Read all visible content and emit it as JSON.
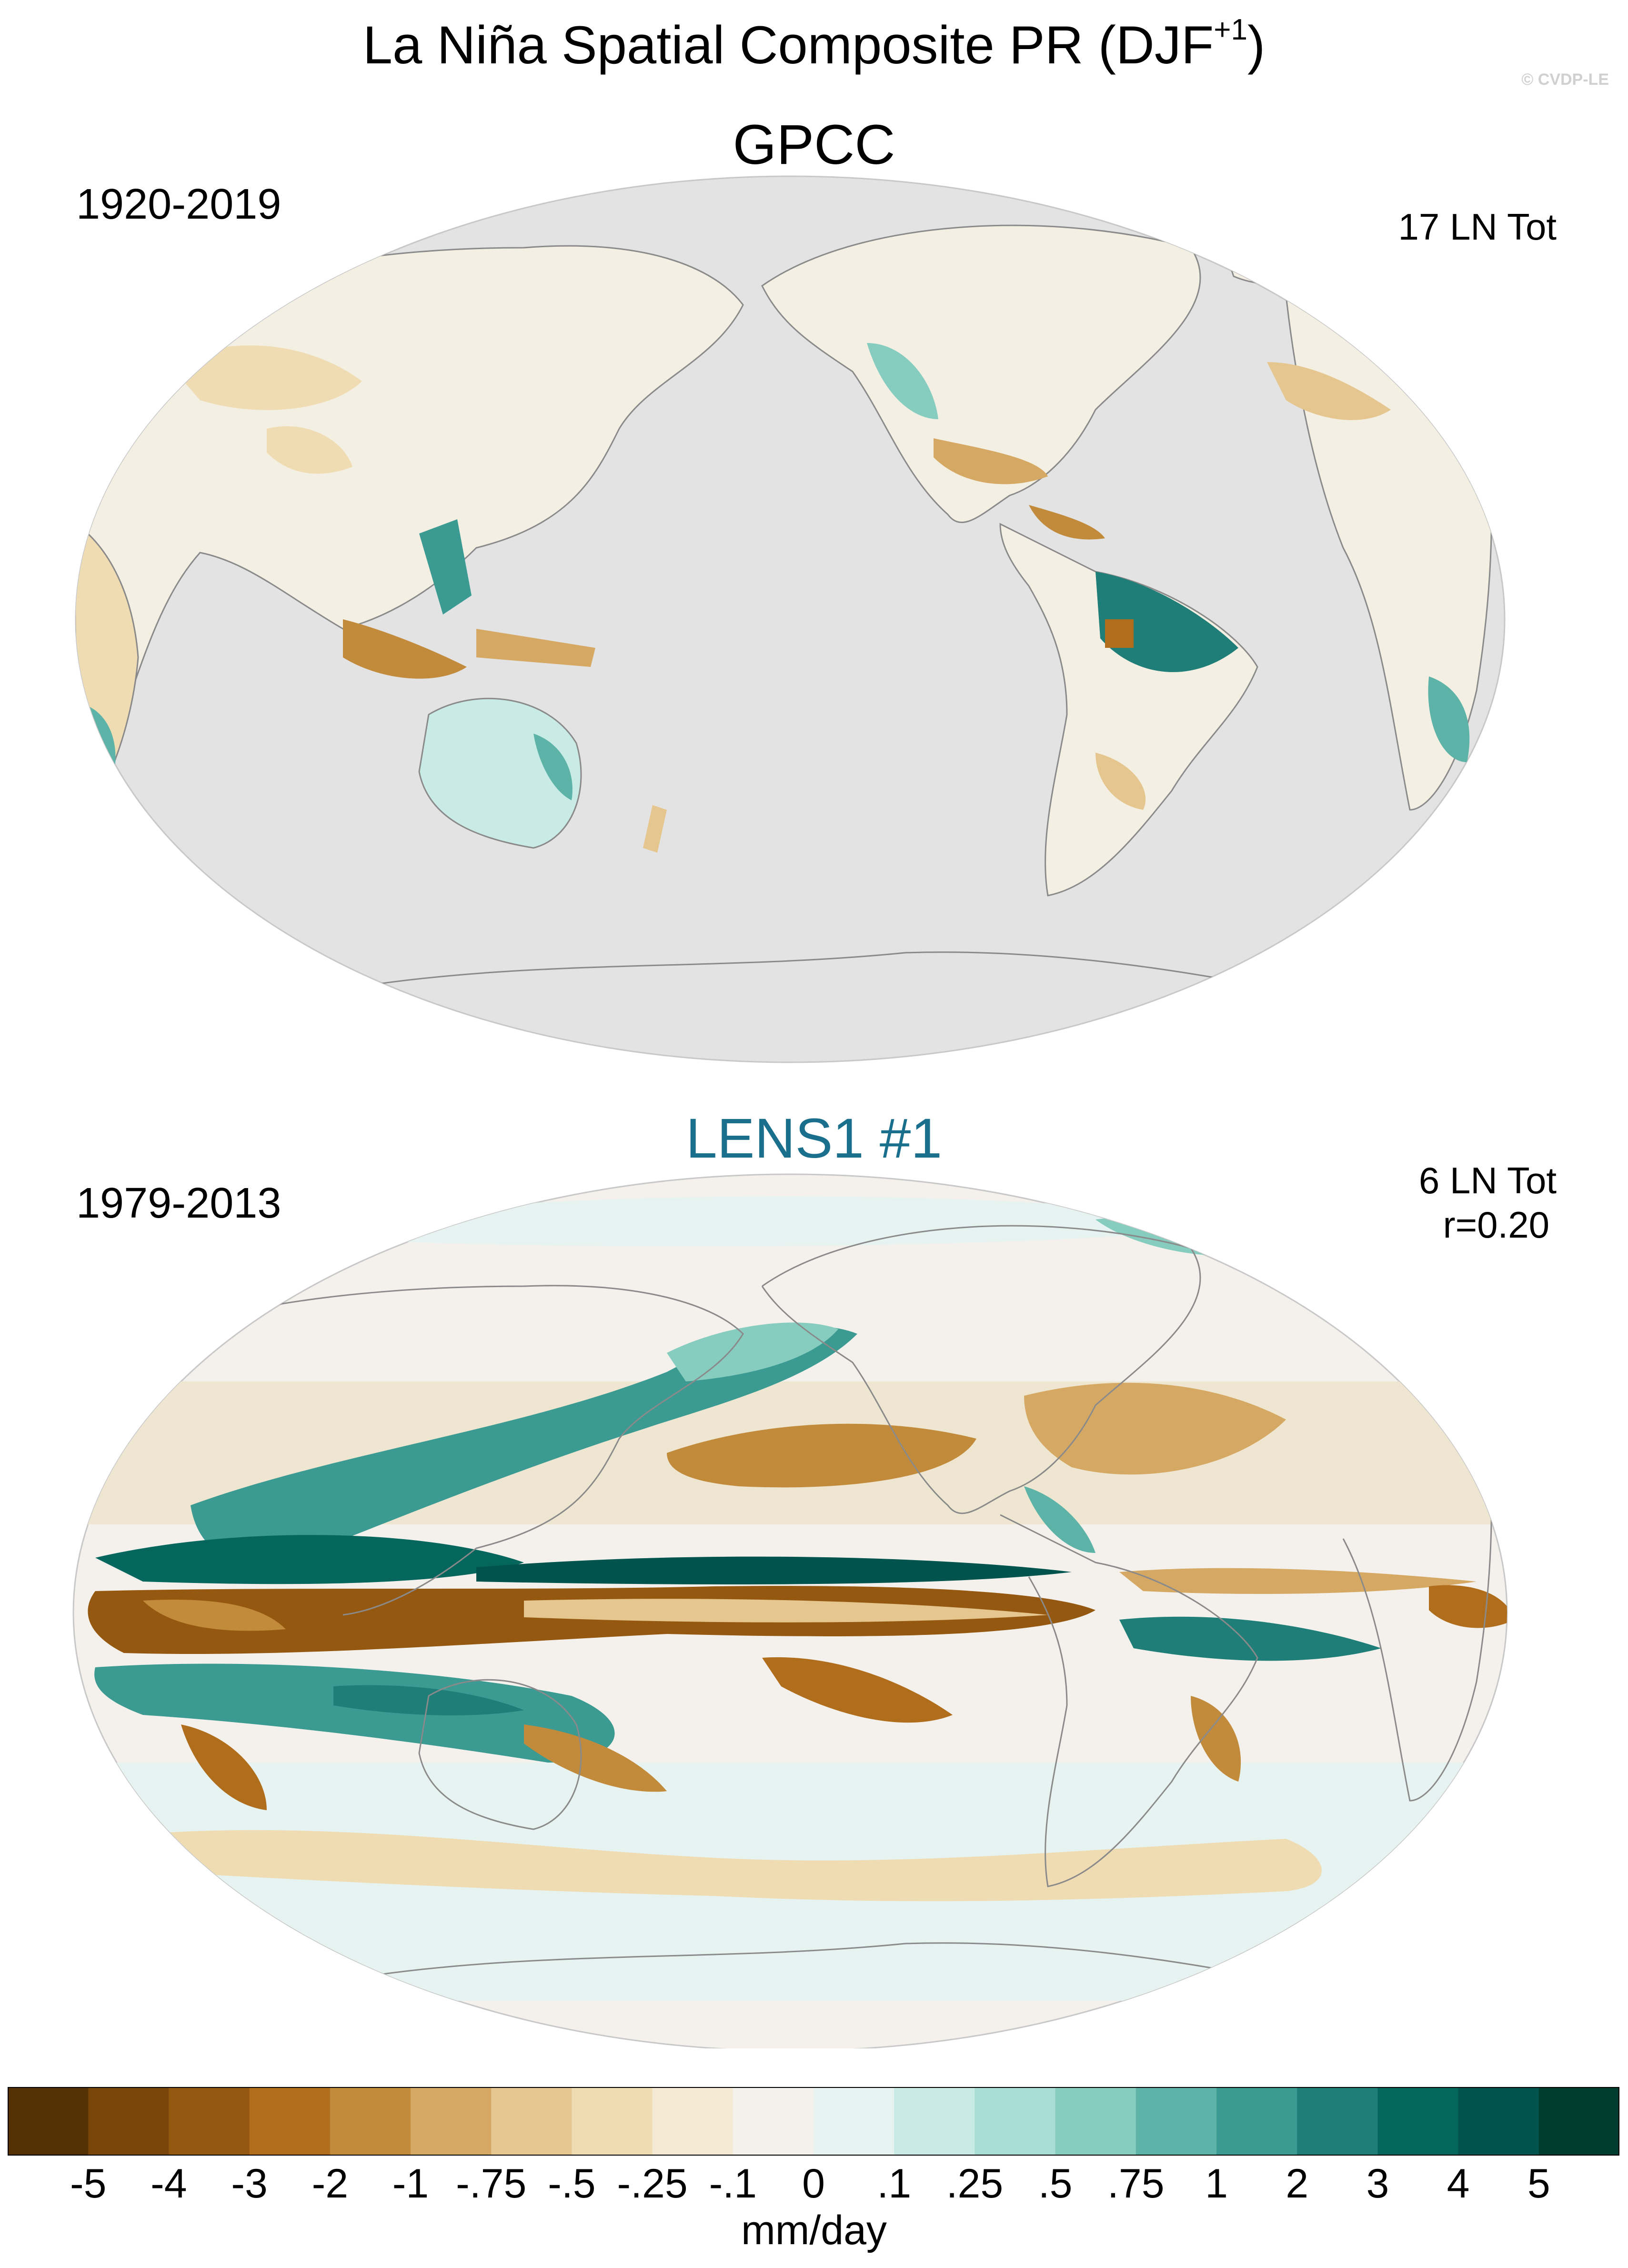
{
  "title_prefix": "La Niña Spatial Composite PR (DJF",
  "title_sup": "+1",
  "title_suffix": ")",
  "watermark": "© CVDP-LE",
  "panels": [
    {
      "title": "GPCC",
      "years": "1920-2019",
      "events": "17 LN Tot"
    },
    {
      "title": "LENS1 #1",
      "years": "1979-2013",
      "events": "6 LN Tot",
      "correlation": "r=0.20"
    }
  ],
  "colorbar": {
    "units": "mm/day",
    "labels": [
      "-5",
      "-4",
      "-3",
      "-2",
      "-1",
      "-.75",
      "-.5",
      "-.25",
      "-.1",
      "0",
      ".1",
      ".25",
      ".5",
      ".75",
      "1",
      "2",
      "3",
      "4",
      "5"
    ],
    "colors": [
      "#543005",
      "#7a4509",
      "#955810",
      "#b06d1b",
      "#c28a3b",
      "#d5a964",
      "#e4c68e",
      "#efdcb3",
      "#f4e9d2",
      "#f4f1ec",
      "#e6f3f1",
      "#c9ebe6",
      "#a8ddd5",
      "#86cdc0",
      "#5db3a7",
      "#3b9a91",
      "#1f7f78",
      "#05665e",
      "#00544d",
      "#003c30"
    ]
  },
  "colors": {
    "ocean_no_data": "#e3e3e3",
    "coast": "#8a8a8a",
    "title_lens": "#1a6f8c"
  }
}
